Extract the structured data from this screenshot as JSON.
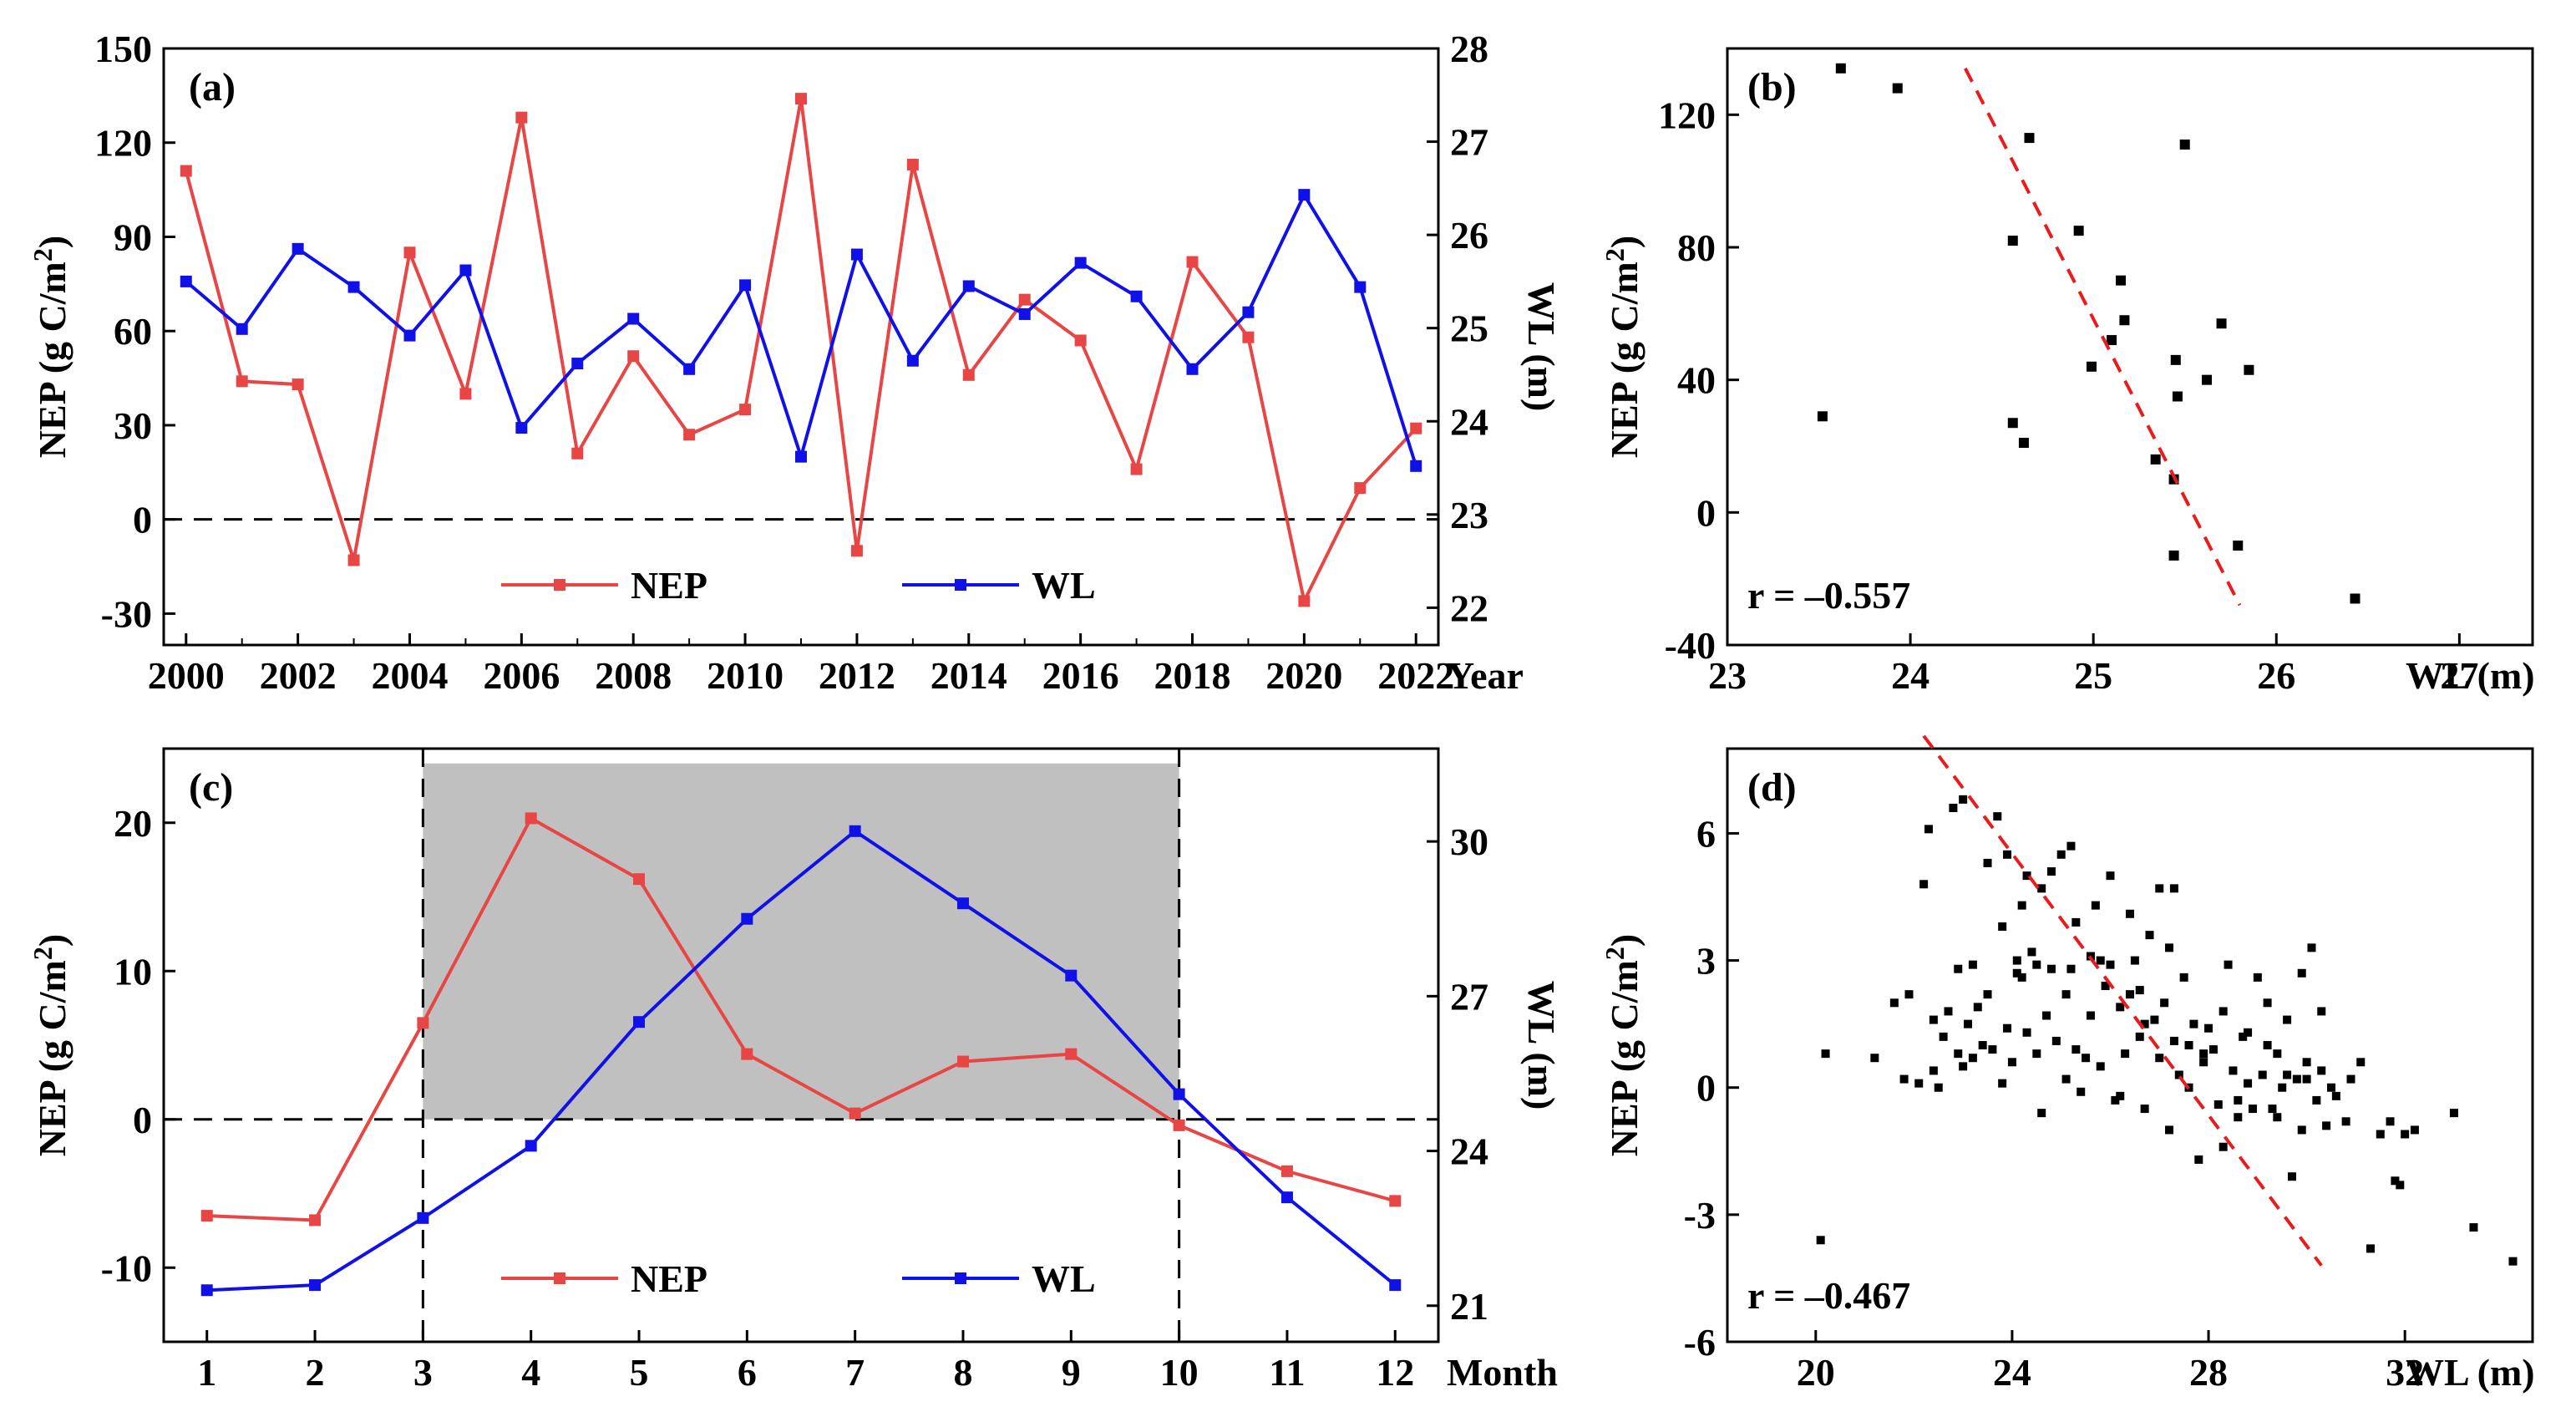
{
  "chart_data": [
    {
      "panel": "(a)",
      "type": "line",
      "x": [
        2000,
        2001,
        2002,
        2003,
        2004,
        2005,
        2006,
        2007,
        2008,
        2009,
        2010,
        2011,
        2012,
        2013,
        2014,
        2015,
        2016,
        2017,
        2018,
        2019,
        2020,
        2021,
        2022
      ],
      "x_tick_labels": [
        "2000",
        "2002",
        "2004",
        "2006",
        "2008",
        "2010",
        "2012",
        "2014",
        "2016",
        "2018",
        "2020",
        "2022"
      ],
      "x_ticks": [
        2000,
        2002,
        2004,
        2006,
        2008,
        2010,
        2012,
        2014,
        2016,
        2018,
        2020,
        2022
      ],
      "xlabel": "Year",
      "xlim": [
        1999.6,
        2022.4
      ],
      "ylabel": "NEP (g C/m²)",
      "ylim": [
        -40,
        150
      ],
      "y_ticks": [
        -30,
        0,
        30,
        60,
        90,
        120,
        150
      ],
      "y2label": "WL (m)",
      "y2lim": [
        21.6,
        28
      ],
      "y2_ticks": [
        22,
        23,
        24,
        25,
        26,
        27,
        28
      ],
      "reference_line": 0,
      "series": [
        {
          "name": "NEP",
          "axis": "left",
          "color": "#e84545",
          "values": [
            111,
            44,
            43,
            -13,
            85,
            40,
            128,
            21,
            52,
            27,
            35,
            134,
            -10,
            113,
            46,
            70,
            57,
            16,
            82,
            58,
            -26,
            10,
            29
          ]
        },
        {
          "name": "WL",
          "axis": "right",
          "color": "#1010e8",
          "values": [
            25.5,
            24.99,
            25.85,
            25.44,
            24.92,
            25.62,
            23.93,
            24.62,
            25.1,
            24.56,
            25.46,
            23.62,
            25.79,
            24.65,
            25.45,
            25.15,
            25.7,
            25.34,
            24.56,
            25.17,
            26.43,
            25.44,
            23.52
          ]
        }
      ],
      "legend": [
        "NEP",
        "WL"
      ],
      "legend_position": "bottom-center"
    },
    {
      "panel": "(b)",
      "type": "scatter",
      "xlabel": "WL (m)",
      "ylabel": "NEP (g C/m²)",
      "xlim": [
        23,
        27.4
      ],
      "ylim": [
        -40,
        140
      ],
      "x_ticks": [
        23,
        24,
        25,
        26,
        27
      ],
      "x_tick_labels": [
        "23",
        "24",
        "25",
        "26",
        "27"
      ],
      "y_ticks": [
        -40,
        0,
        40,
        80,
        120
      ],
      "points": [
        [
          25.5,
          111
        ],
        [
          24.99,
          44
        ],
        [
          25.85,
          43
        ],
        [
          25.44,
          -13
        ],
        [
          24.92,
          85
        ],
        [
          25.62,
          40
        ],
        [
          23.93,
          128
        ],
        [
          24.62,
          21
        ],
        [
          25.1,
          52
        ],
        [
          24.56,
          27
        ],
        [
          25.46,
          35
        ],
        [
          23.62,
          134
        ],
        [
          25.79,
          -10
        ],
        [
          24.65,
          113
        ],
        [
          25.45,
          46
        ],
        [
          25.15,
          70
        ],
        [
          25.7,
          57
        ],
        [
          25.34,
          16
        ],
        [
          24.56,
          82
        ],
        [
          25.17,
          58
        ],
        [
          26.43,
          -26
        ],
        [
          25.44,
          10
        ],
        [
          23.52,
          29
        ]
      ],
      "fit_line": [
        [
          24.3,
          134
        ],
        [
          25.8,
          -28
        ]
      ],
      "annotation": "r = –0.557"
    },
    {
      "panel": "(c)",
      "type": "line",
      "x": [
        1,
        2,
        3,
        4,
        5,
        6,
        7,
        8,
        9,
        10,
        11,
        12
      ],
      "x_tick_labels": [
        "1",
        "2",
        "3",
        "4",
        "5",
        "6",
        "7",
        "8",
        "9",
        "10",
        "11",
        "12"
      ],
      "xlabel": "Month",
      "xlim": [
        0.6,
        12.4
      ],
      "ylabel": "NEP (g C/m²)",
      "ylim": [
        -15,
        25
      ],
      "y_ticks": [
        -10,
        0,
        10,
        20
      ],
      "y2label": "WL (m)",
      "y2lim": [
        20.3,
        31.8
      ],
      "y2_ticks": [
        21,
        24,
        27,
        30
      ],
      "reference_line": 0,
      "shaded_region": {
        "x": [
          3,
          10
        ],
        "y_top": 24
      },
      "vertical_dashes": [
        3,
        10
      ],
      "series": [
        {
          "name": "NEP",
          "axis": "left",
          "color": "#e84545",
          "values": [
            -6.5,
            -6.8,
            6.5,
            20.3,
            16.2,
            4.4,
            0.4,
            3.9,
            4.4,
            -0.4,
            -3.5,
            -5.5
          ]
        },
        {
          "name": "WL",
          "axis": "right",
          "color": "#1010e8",
          "values": [
            21.3,
            21.4,
            22.7,
            24.1,
            26.5,
            28.5,
            30.2,
            28.8,
            27.4,
            25.1,
            23.1,
            21.4
          ]
        }
      ],
      "legend": [
        "NEP",
        "WL"
      ],
      "legend_position": "bottom-center"
    },
    {
      "panel": "(d)",
      "type": "scatter",
      "xlabel": "WL (m)",
      "ylabel": "NEP (g C/m²)",
      "xlim": [
        18.2,
        34.6
      ],
      "ylim": [
        -6,
        8
      ],
      "x_ticks": [
        20,
        24,
        28,
        32
      ],
      "x_tick_labels": [
        "20",
        "24",
        "28",
        "32"
      ],
      "y_ticks": [
        -6,
        -3,
        0,
        3,
        6
      ],
      "points": [
        [
          20.1,
          -3.6
        ],
        [
          20.2,
          0.8
        ],
        [
          21.2,
          0.7
        ],
        [
          21.6,
          2.0
        ],
        [
          21.8,
          0.2
        ],
        [
          21.9,
          2.2
        ],
        [
          22.1,
          0.1
        ],
        [
          22.2,
          4.8
        ],
        [
          22.3,
          6.1
        ],
        [
          22.4,
          1.6
        ],
        [
          22.5,
          0.0
        ],
        [
          22.6,
          1.2
        ],
        [
          22.7,
          1.8
        ],
        [
          22.8,
          6.6
        ],
        [
          22.9,
          2.8
        ],
        [
          23.0,
          6.8
        ],
        [
          23.0,
          0.5
        ],
        [
          23.1,
          1.5
        ],
        [
          23.2,
          0.7
        ],
        [
          23.3,
          1.9
        ],
        [
          23.4,
          1.0
        ],
        [
          23.5,
          2.2
        ],
        [
          23.5,
          5.3
        ],
        [
          23.6,
          0.9
        ],
        [
          23.7,
          6.4
        ],
        [
          23.8,
          0.1
        ],
        [
          23.9,
          5.5
        ],
        [
          23.9,
          1.4
        ],
        [
          24.0,
          0.6
        ],
        [
          24.1,
          3.0
        ],
        [
          24.1,
          2.7
        ],
        [
          24.2,
          4.3
        ],
        [
          24.3,
          1.3
        ],
        [
          24.3,
          5.0
        ],
        [
          24.4,
          3.2
        ],
        [
          24.5,
          0.8
        ],
        [
          24.5,
          2.9
        ],
        [
          24.6,
          4.7
        ],
        [
          24.7,
          1.7
        ],
        [
          24.8,
          2.8
        ],
        [
          24.8,
          5.1
        ],
        [
          24.9,
          1.1
        ],
        [
          25.0,
          5.5
        ],
        [
          25.1,
          0.2
        ],
        [
          25.1,
          2.2
        ],
        [
          25.2,
          5.7
        ],
        [
          25.3,
          0.9
        ],
        [
          25.3,
          3.9
        ],
        [
          25.4,
          -0.1
        ],
        [
          25.5,
          0.7
        ],
        [
          25.6,
          3.1
        ],
        [
          25.6,
          1.7
        ],
        [
          25.7,
          4.3
        ],
        [
          25.8,
          0.5
        ],
        [
          25.9,
          2.4
        ],
        [
          26.0,
          2.9
        ],
        [
          26.0,
          5.0
        ],
        [
          26.1,
          -0.3
        ],
        [
          26.2,
          1.9
        ],
        [
          26.3,
          0.8
        ],
        [
          26.4,
          4.1
        ],
        [
          26.5,
          3.0
        ],
        [
          26.6,
          1.2
        ],
        [
          26.6,
          2.3
        ],
        [
          26.7,
          -0.5
        ],
        [
          26.8,
          3.6
        ],
        [
          26.9,
          1.6
        ],
        [
          27.0,
          4.7
        ],
        [
          27.0,
          0.7
        ],
        [
          27.1,
          2.0
        ],
        [
          27.2,
          -1.0
        ],
        [
          27.3,
          1.1
        ],
        [
          27.3,
          4.7
        ],
        [
          27.4,
          0.3
        ],
        [
          27.5,
          2.6
        ],
        [
          27.6,
          0.0
        ],
        [
          27.7,
          1.5
        ],
        [
          27.8,
          -1.7
        ],
        [
          27.9,
          0.6
        ],
        [
          28.0,
          1.4
        ],
        [
          28.1,
          0.9
        ],
        [
          28.2,
          -0.4
        ],
        [
          28.3,
          1.8
        ],
        [
          28.4,
          2.9
        ],
        [
          28.5,
          0.4
        ],
        [
          28.6,
          -0.3
        ],
        [
          28.7,
          1.2
        ],
        [
          28.8,
          0.1
        ],
        [
          28.9,
          -0.5
        ],
        [
          29.0,
          2.6
        ],
        [
          29.1,
          0.3
        ],
        [
          29.2,
          1.0
        ],
        [
          29.3,
          -0.5
        ],
        [
          29.4,
          0.8
        ],
        [
          29.5,
          0.0
        ],
        [
          29.6,
          1.6
        ],
        [
          29.7,
          -2.1
        ],
        [
          29.8,
          0.2
        ],
        [
          29.9,
          2.7
        ],
        [
          30.0,
          0.6
        ],
        [
          30.1,
          3.3
        ],
        [
          30.2,
          -0.3
        ],
        [
          30.3,
          0.4
        ],
        [
          30.4,
          -0.9
        ],
        [
          30.5,
          0.0
        ],
        [
          30.6,
          -0.2
        ],
        [
          30.8,
          -0.8
        ],
        [
          30.9,
          0.2
        ],
        [
          31.1,
          0.6
        ],
        [
          31.3,
          -3.8
        ],
        [
          31.5,
          -1.1
        ],
        [
          31.7,
          -0.8
        ],
        [
          31.8,
          -2.2
        ],
        [
          31.9,
          -2.3
        ],
        [
          32.0,
          -1.1
        ],
        [
          32.2,
          -1.0
        ],
        [
          33.0,
          -0.6
        ],
        [
          33.4,
          -3.3
        ],
        [
          34.2,
          -4.1
        ],
        [
          22.4,
          0.4
        ],
        [
          23.2,
          2.9
        ],
        [
          24.6,
          -0.6
        ],
        [
          25.8,
          3.0
        ],
        [
          26.4,
          2.2
        ],
        [
          27.6,
          1.0
        ],
        [
          28.6,
          -0.7
        ],
        [
          29.2,
          2.0
        ],
        [
          29.9,
          -1.0
        ],
        [
          23.8,
          3.8
        ],
        [
          24.2,
          2.6
        ],
        [
          26.7,
          1.5
        ],
        [
          27.9,
          0.8
        ],
        [
          28.8,
          1.3
        ],
        [
          29.6,
          0.3
        ],
        [
          30.3,
          1.8
        ],
        [
          22.9,
          0.8
        ],
        [
          25.2,
          2.8
        ],
        [
          26.2,
          -0.2
        ],
        [
          27.2,
          3.3
        ],
        [
          28.3,
          -1.4
        ],
        [
          29.4,
          -0.7
        ],
        [
          30.0,
          0.2
        ]
      ],
      "fit_line": [
        [
          22.2,
          8.3
        ],
        [
          30.3,
          -4.2
        ]
      ],
      "annotation": "r = –0.467"
    }
  ]
}
